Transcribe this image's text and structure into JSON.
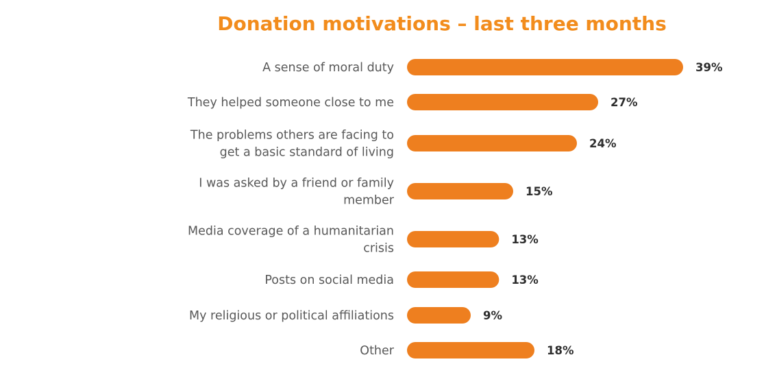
{
  "chart_data": {
    "type": "bar",
    "orientation": "horizontal",
    "title": "Donation motivations – last three months",
    "categories": [
      [
        "A sense of moral duty"
      ],
      [
        "They helped someone close to me"
      ],
      [
        "The problems others are facing to",
        "get a basic standard of living"
      ],
      [
        "I was asked by a friend or family",
        "member"
      ],
      [
        "Media coverage of a humanitarian",
        "crisis"
      ],
      [
        "Posts on social media"
      ],
      [
        "My religious or political affiliations"
      ],
      [
        "Other"
      ]
    ],
    "values": [
      39,
      27,
      24,
      15,
      13,
      13,
      9,
      18
    ],
    "value_labels": [
      "39%",
      "27%",
      "24%",
      "15%",
      "13%",
      "13%",
      "9%",
      "18%"
    ],
    "unit": "%",
    "xlim": [
      0,
      39
    ],
    "grid": false,
    "legend": "none",
    "colors": {
      "bar": "#ee7f1f",
      "title": "#f28c1c",
      "category_text": "#585858",
      "value_text": "#2e2e2e"
    }
  }
}
